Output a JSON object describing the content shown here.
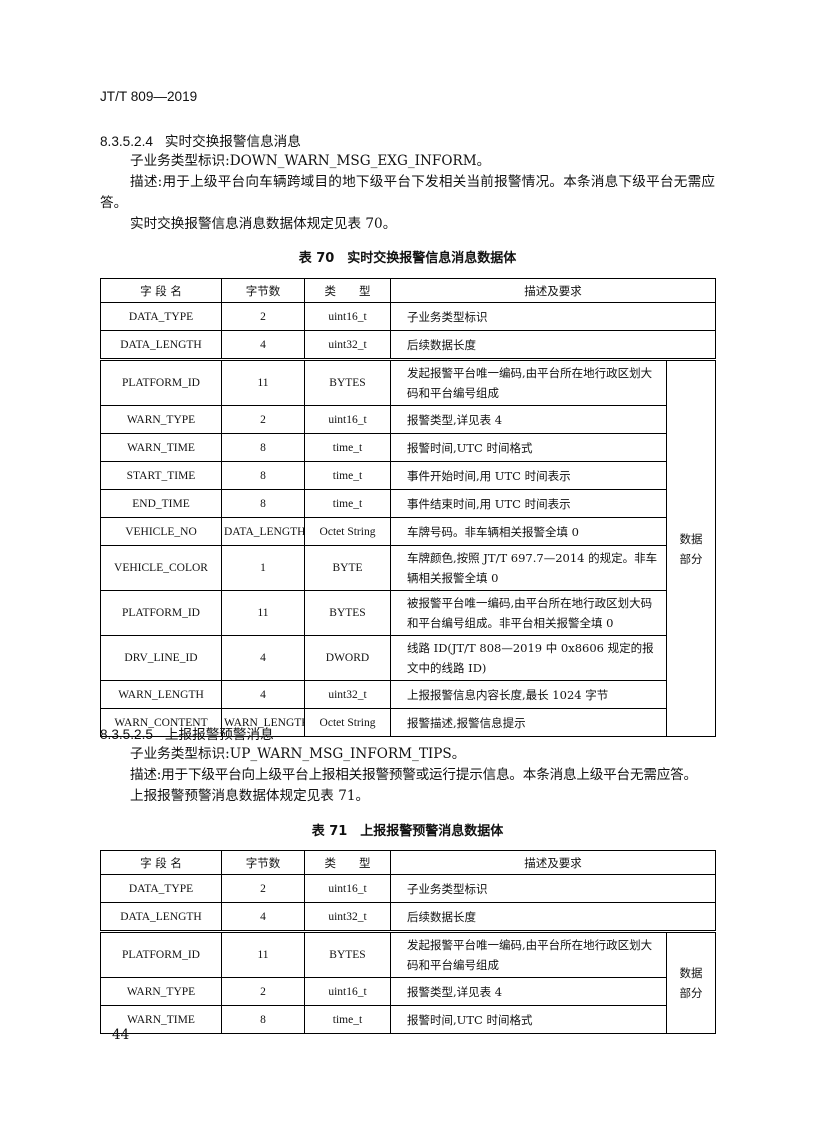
{
  "header": "JT/T 809—2019",
  "section_1": {
    "number": "8.3.5.2.4",
    "title": "实时交换报警信息消息",
    "paragraphs": [
      "子业务类型标识:DOWN_WARN_MSG_EXG_INFORM。",
      "描述:用于上级平台向车辆跨域目的地下级平台下发相关当前报警情况。本条消息下级平台无需应答。",
      "实时交换报警信息消息数据体规定见表 70。"
    ]
  },
  "table_70": {
    "caption": "表 70　实时交换报警信息消息数据体",
    "columns": [
      "字 段 名",
      "字节数",
      "类　　型",
      "描述及要求"
    ],
    "group_label": "数据\n部分",
    "rows": [
      [
        "DATA_TYPE",
        "2",
        "uint16_t",
        "子业务类型标识"
      ],
      [
        "DATA_LENGTH",
        "4",
        "uint32_t",
        "后续数据长度"
      ],
      [
        "PLATFORM_ID",
        "11",
        "BYTES",
        "发起报警平台唯一编码,由平台所在地行政区划大码和平台编号组成"
      ],
      [
        "WARN_TYPE",
        "2",
        "uint16_t",
        "报警类型,详见表 4"
      ],
      [
        "WARN_TIME",
        "8",
        "time_t",
        "报警时间,UTC 时间格式"
      ],
      [
        "START_TIME",
        "8",
        "time_t",
        "事件开始时间,用 UTC 时间表示"
      ],
      [
        "END_TIME",
        "8",
        "time_t",
        "事件结束时间,用 UTC 时间表示"
      ],
      [
        "VEHICLE_NO",
        "DATA_LENGTH",
        "Octet String",
        "车牌号码。非车辆相关报警全填 0"
      ],
      [
        "VEHICLE_COLOR",
        "1",
        "BYTE",
        "车牌颜色,按照 JT/T 697.7—2014 的规定。非车辆相关报警全填 0"
      ],
      [
        "PLATFORM_ID",
        "11",
        "BYTES",
        "被报警平台唯一编码,由平台所在地行政区划大码和平台编号组成。非平台相关报警全填 0"
      ],
      [
        "DRV_LINE_ID",
        "4",
        "DWORD",
        "线路 ID(JT/T 808—2019 中 0x8606 规定的报文中的线路 ID)"
      ],
      [
        "WARN_LENGTH",
        "4",
        "uint32_t",
        "上报报警信息内容长度,最长 1024 字节"
      ],
      [
        "WARN_CONTENT",
        "WARN_LENGTH",
        "Octet String",
        "报警描述,报警信息提示"
      ]
    ]
  },
  "section_2": {
    "number": "8.3.5.2.5",
    "title": "上报报警预警消息",
    "paragraphs": [
      "子业务类型标识:UP_WARN_MSG_INFORM_TIPS。",
      "描述:用于下级平台向上级平台上报相关报警预警或运行提示信息。本条消息上级平台无需应答。",
      "上报报警预警消息数据体规定见表 71。"
    ]
  },
  "table_71": {
    "caption": "表 71　上报报警预警消息数据体",
    "columns": [
      "字 段 名",
      "字节数",
      "类　　型",
      "描述及要求"
    ],
    "group_label": "数据\n部分",
    "rows": [
      [
        "DATA_TYPE",
        "2",
        "uint16_t",
        "子业务类型标识"
      ],
      [
        "DATA_LENGTH",
        "4",
        "uint32_t",
        "后续数据长度"
      ],
      [
        "PLATFORM_ID",
        "11",
        "BYTES",
        "发起报警平台唯一编码,由平台所在地行政区划大码和平台编号组成"
      ],
      [
        "WARN_TYPE",
        "2",
        "uint16_t",
        "报警类型,详见表 4"
      ],
      [
        "WARN_TIME",
        "8",
        "time_t",
        "报警时间,UTC 时间格式"
      ]
    ]
  },
  "page_number": "44"
}
